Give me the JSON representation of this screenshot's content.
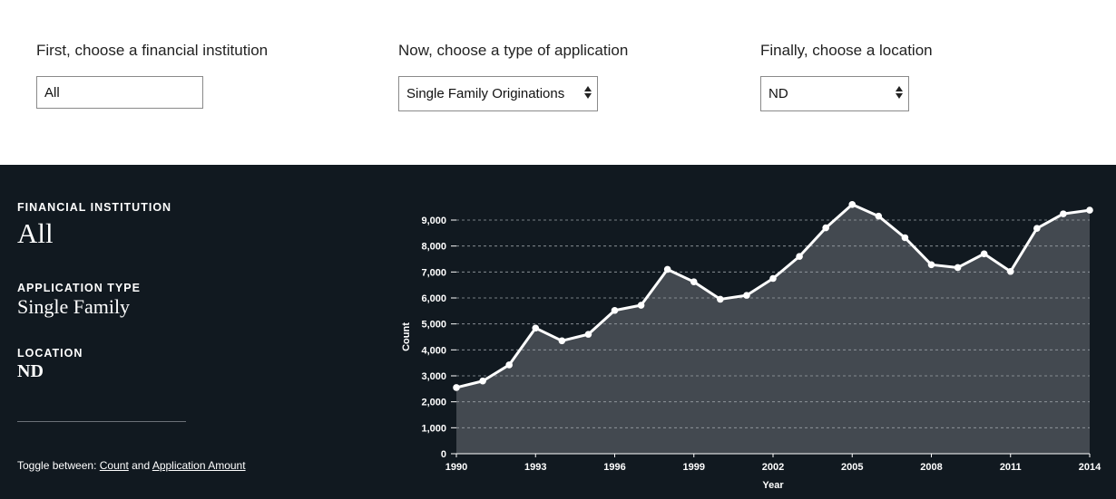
{
  "filters": {
    "institution": {
      "label": "First, choose a financial institution",
      "value": "All"
    },
    "application": {
      "label": "Now, choose a type of application",
      "value": "Single Family Originations"
    },
    "location": {
      "label": "Finally, choose a location",
      "value": "ND"
    }
  },
  "summary": {
    "institution_heading": "FINANCIAL INSTITUTION",
    "institution_value": "All",
    "application_heading": "APPLICATION TYPE",
    "application_value": "Single Family",
    "location_heading": "LOCATION",
    "location_value": "ND"
  },
  "toggle": {
    "prefix": "Toggle between:",
    "option_count": "Count",
    "joiner": "and",
    "option_amount": "Application Amount"
  },
  "colors": {
    "panel_bg": "#111920",
    "area_fill": "#434950",
    "line": "#ffffff"
  },
  "chart_data": {
    "type": "area",
    "xlabel": "Year",
    "ylabel": "Count",
    "xlim": [
      1990,
      2014
    ],
    "ylim": [
      0,
      9000
    ],
    "x_ticks": [
      1990,
      1993,
      1996,
      1999,
      2002,
      2005,
      2008,
      2011,
      2014
    ],
    "y_ticks": [
      0,
      1000,
      2000,
      3000,
      4000,
      5000,
      6000,
      7000,
      8000,
      9000
    ],
    "y_tick_labels": [
      "0",
      "1,000",
      "2,000",
      "3,000",
      "4,000",
      "5,000",
      "6,000",
      "7,000",
      "8,000",
      "9,000"
    ],
    "grid": true,
    "x": [
      1990,
      1991,
      1992,
      1993,
      1994,
      1995,
      1996,
      1997,
      1998,
      1999,
      2000,
      2001,
      2002,
      2003,
      2004,
      2005,
      2006,
      2007,
      2008,
      2009,
      2010,
      2011,
      2012,
      2013,
      2014
    ],
    "values": [
      2550,
      2800,
      3420,
      4840,
      4350,
      4600,
      5520,
      5720,
      7100,
      6620,
      5950,
      6100,
      6750,
      7600,
      8700,
      9600,
      9150,
      8320,
      7280,
      7170,
      7700,
      7020,
      8680,
      9240,
      9380
    ]
  }
}
